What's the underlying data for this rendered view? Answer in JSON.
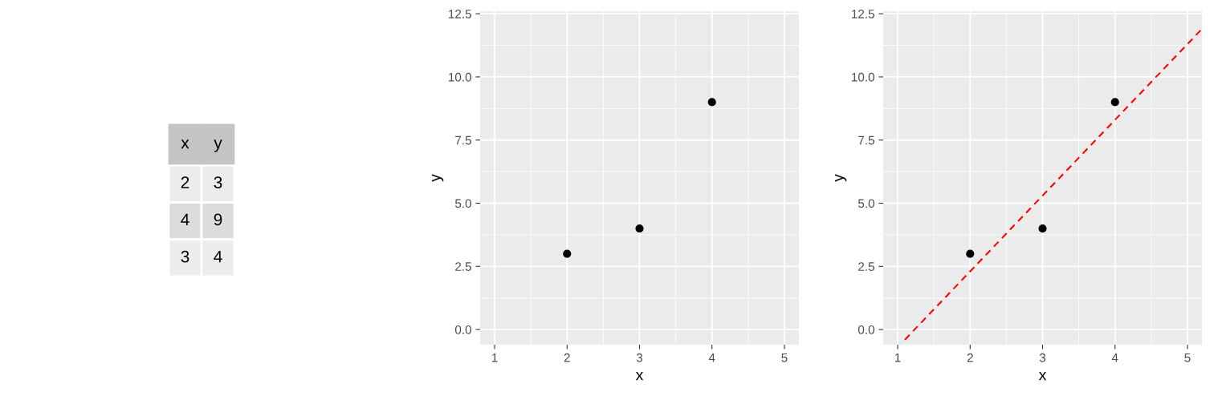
{
  "chart_data": [
    {
      "type": "heatmap",
      "categories": [
        "x",
        "y"
      ],
      "y_categories": [
        null,
        null,
        null
      ],
      "cells": [
        [
          2,
          3
        ],
        [
          4,
          9
        ],
        [
          3,
          4
        ]
      ],
      "data_labels": true
    },
    {
      "type": "scatter",
      "xlabel": "x",
      "ylabel": "y",
      "x": [
        2,
        4,
        3
      ],
      "values": [
        3,
        9,
        4
      ],
      "color": "#000000",
      "marker": "circle",
      "grid": true,
      "xlim": [
        0.8,
        5.2
      ],
      "ylim": [
        -0.6,
        12.6
      ],
      "xticks": [
        1,
        2,
        3,
        4,
        5
      ],
      "yticks": [
        {
          "value": 0,
          "label": "0.0"
        },
        {
          "value": 2.5,
          "label": "2.5"
        },
        {
          "value": 5,
          "label": "5.0"
        },
        {
          "value": 7.5,
          "label": "7.5"
        },
        {
          "value": 10,
          "label": "10.0"
        },
        {
          "value": 12.5,
          "label": "12.5"
        }
      ]
    },
    {
      "type": "scatter",
      "xlabel": "x",
      "ylabel": "y",
      "grid": true,
      "xlim": [
        0.8,
        5.2
      ],
      "ylim": [
        -0.6,
        12.6
      ],
      "xticks": [
        1,
        2,
        3,
        4,
        5
      ],
      "yticks": [
        {
          "value": 0,
          "label": "0.0"
        },
        {
          "value": 2.5,
          "label": "2.5"
        },
        {
          "value": 5,
          "label": "5.0"
        },
        {
          "value": 7.5,
          "label": "7.5"
        },
        {
          "value": 10,
          "label": "10.0"
        },
        {
          "value": 12.5,
          "label": "12.5"
        }
      ],
      "series": [
        {
          "type": "scatter",
          "x": [
            2,
            4,
            3
          ],
          "values": [
            3,
            9,
            4
          ],
          "color": "#000000",
          "marker": "circle"
        },
        {
          "type": "line",
          "x": [
            1.1,
            5.2
          ],
          "values": [
            -0.4,
            11.9
          ],
          "color": "#ff0000",
          "line_style": "dashed",
          "marker": "none"
        }
      ]
    }
  ]
}
